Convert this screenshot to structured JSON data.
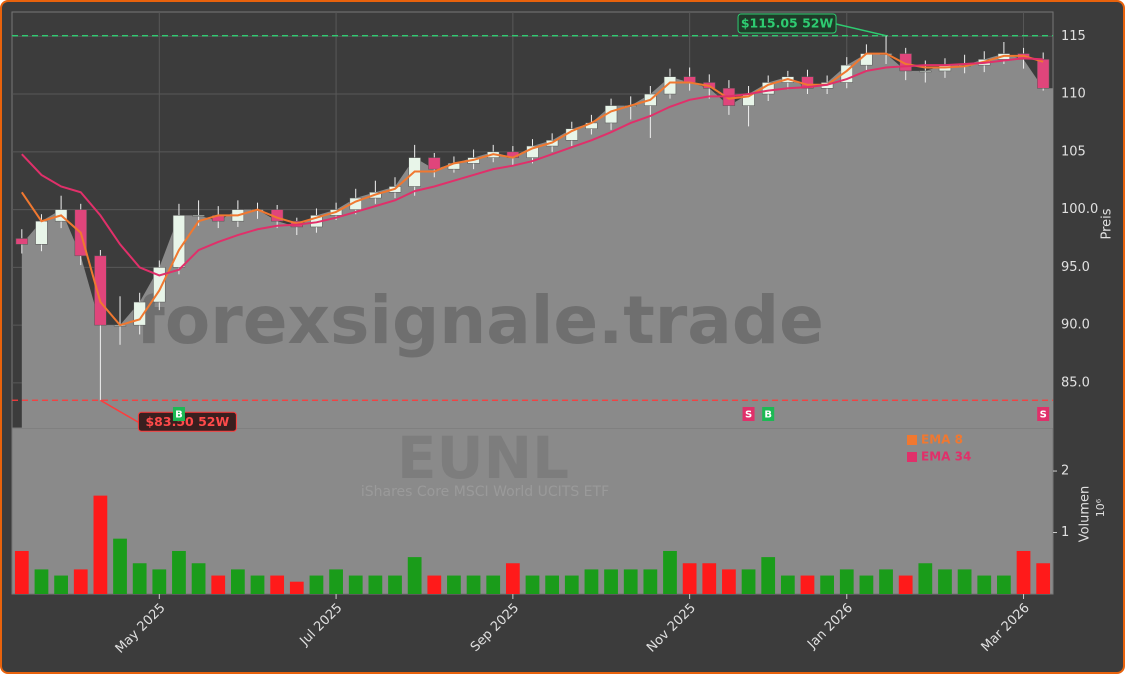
{
  "chart_data": [
    {
      "type": "candlestick",
      "watermark": "forexsignale.trade",
      "title": "EUNL",
      "subtitle": "iShares Core MSCI World UCITS ETF",
      "y_label": "Preis",
      "ylim": [
        81.1,
        117.1
      ],
      "yticks": [
        {
          "value": 85,
          "label": "85.0"
        },
        {
          "value": 90,
          "label": "90.0"
        },
        {
          "value": 95,
          "label": "95.0"
        },
        {
          "value": 100,
          "label": "100.0"
        },
        105,
        110,
        115
      ],
      "grid": true,
      "up_color": "#e8f5e9",
      "down_color": "#e0457b",
      "area_color": "#8a8a8a",
      "open": [
        97.5,
        97,
        99,
        100,
        96,
        90,
        90,
        92,
        95,
        99.5,
        99.5,
        99,
        100,
        100,
        99,
        98.5,
        99.5,
        100,
        101,
        101.5,
        102,
        104.5,
        103.5,
        104,
        104.5,
        105,
        104.5,
        105.5,
        106,
        107,
        107.5,
        109,
        109,
        110,
        111.5,
        111,
        110.5,
        109,
        110,
        111,
        111.5,
        110.5,
        111,
        112.5,
        113.5,
        113.5,
        112,
        112,
        112.5,
        112.5,
        113,
        113.5,
        113
      ],
      "high": [
        98.3,
        99.6,
        101.2,
        100.5,
        96.5,
        92.5,
        92.8,
        95.6,
        100.5,
        100.8,
        100.3,
        100.8,
        100.6,
        100.4,
        99.3,
        100.1,
        100.6,
        101.8,
        102.5,
        102.8,
        105.6,
        104.9,
        104.6,
        105.2,
        105.6,
        105.5,
        106.1,
        106.6,
        107.6,
        108.2,
        109.6,
        109.8,
        110.7,
        112.2,
        112.3,
        111.7,
        111.2,
        110.7,
        111.6,
        112,
        112.1,
        111.6,
        113.2,
        114.3,
        115.05,
        114,
        112.9,
        113.1,
        113.4,
        113.7,
        114.5,
        114,
        113.6
      ],
      "low": [
        96.2,
        96.4,
        98.4,
        95.2,
        83.5,
        88.3,
        89.2,
        91.3,
        94.4,
        98.6,
        98.4,
        98.5,
        99.2,
        98.4,
        97.8,
        98,
        99.1,
        99.6,
        100.5,
        101,
        101.2,
        102.8,
        103.2,
        103.5,
        104.1,
        103.8,
        104,
        105,
        105.5,
        106.5,
        106.9,
        107.8,
        106.2,
        109.6,
        110.3,
        109.6,
        108.2,
        107.2,
        109.4,
        110.4,
        110,
        110,
        110.5,
        112,
        112.6,
        111.2,
        111,
        111.4,
        111.8,
        111.9,
        112.6,
        112.2,
        110.3
      ],
      "close": [
        97,
        99,
        100,
        96,
        90,
        90,
        92,
        95,
        99.5,
        99.5,
        99,
        100,
        100,
        99,
        98.5,
        99.5,
        100,
        101,
        101.5,
        102,
        104.5,
        103.5,
        104,
        104.5,
        105,
        104.5,
        105.5,
        106,
        107,
        107.5,
        109,
        109,
        110,
        111.5,
        111,
        110.5,
        109,
        110,
        111,
        111.5,
        110.5,
        111,
        112.5,
        113.5,
        113.5,
        112,
        112,
        112.5,
        112.5,
        113,
        113.5,
        113,
        110.5
      ],
      "series": [
        {
          "name": "EMA 8",
          "color": "#f07830",
          "values": [
            101.5,
            99,
            99.5,
            98,
            92,
            90,
            90.5,
            93,
            96.5,
            99,
            99.5,
            99.5,
            100,
            99.3,
            98.8,
            99.3,
            99.8,
            100.7,
            101.3,
            101.8,
            103.3,
            103.3,
            104,
            104.3,
            104.8,
            104.5,
            105.3,
            105.8,
            106.8,
            107.5,
            108.5,
            109,
            109.5,
            111,
            111,
            110.7,
            109.6,
            109.8,
            110.8,
            111.3,
            110.8,
            110.8,
            112,
            113.5,
            113.5,
            112.6,
            112.3,
            112.3,
            112.4,
            112.8,
            113.3,
            113.3,
            112.8
          ]
        },
        {
          "name": "EMA 34",
          "color": "#e0306a",
          "values": [
            104.8,
            103,
            102,
            101.5,
            99.5,
            97,
            95,
            94.3,
            94.8,
            96.5,
            97.2,
            97.8,
            98.3,
            98.6,
            98.7,
            98.9,
            99.3,
            99.8,
            100.3,
            100.8,
            101.6,
            102,
            102.5,
            103,
            103.5,
            103.8,
            104.2,
            104.8,
            105.4,
            106,
            106.7,
            107.5,
            108.1,
            108.9,
            109.5,
            109.8,
            109.8,
            110,
            110.3,
            110.5,
            110.6,
            110.8,
            111.3,
            112,
            112.3,
            112.4,
            112.5,
            112.5,
            112.6,
            112.7,
            112.9,
            113.1,
            113
          ]
        }
      ],
      "annotations": [
        {
          "text": "$115.05 52W",
          "value": 115.05,
          "at": 44,
          "color": "#2ecc71"
        },
        {
          "text": "$83.50 52W",
          "value": 83.5,
          "at": 4,
          "color": "#ff3b3b"
        }
      ],
      "signals": [
        {
          "text": "B",
          "at": 8,
          "color": "#1db954"
        },
        {
          "text": "S",
          "at": 37,
          "color": "#e0306a"
        },
        {
          "text": "B",
          "at": 38,
          "color": "#1db954"
        },
        {
          "text": "S",
          "at": 52,
          "color": "#e0306a"
        }
      ]
    },
    {
      "type": "bar",
      "y_label": "Volumen",
      "y_unit": "10⁶",
      "ylim": [
        0,
        2.7
      ],
      "yticks": [
        1,
        2
      ],
      "up_color": "#1a9c1a",
      "down_color": "#ff1a1a",
      "categories": [
        null,
        null,
        null,
        null,
        null,
        null,
        null,
        "May 2025",
        null,
        null,
        null,
        null,
        null,
        null,
        null,
        null,
        "Jul 2025",
        null,
        null,
        null,
        null,
        null,
        null,
        null,
        null,
        "Sep 2025",
        null,
        null,
        null,
        null,
        null,
        null,
        null,
        null,
        "Nov 2025",
        null,
        null,
        null,
        null,
        null,
        null,
        null,
        "Jan 2026",
        null,
        null,
        null,
        null,
        null,
        null,
        null,
        null,
        "Mar 2026",
        null
      ],
      "values": [
        0.7,
        0.4,
        0.3,
        0.4,
        1.6,
        0.9,
        0.5,
        0.4,
        0.7,
        0.5,
        0.3,
        0.4,
        0.3,
        0.3,
        0.2,
        0.3,
        0.4,
        0.3,
        0.3,
        0.3,
        0.6,
        0.3,
        0.3,
        0.3,
        0.3,
        0.5,
        0.3,
        0.3,
        0.3,
        0.4,
        0.4,
        0.4,
        0.4,
        0.7,
        0.5,
        0.5,
        0.4,
        0.4,
        0.6,
        0.3,
        0.3,
        0.3,
        0.4,
        0.3,
        0.4,
        0.3,
        0.5,
        0.4,
        0.4,
        0.3,
        0.3,
        0.7,
        0.5
      ]
    }
  ]
}
